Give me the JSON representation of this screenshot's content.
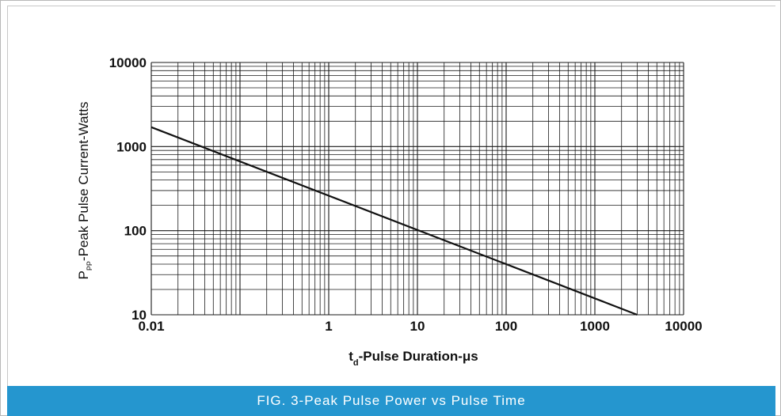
{
  "caption": "FIG. 3-Peak Pulse Power vs Pulse Time",
  "colors": {
    "caption_bar": "#2596cf",
    "line": "#111111",
    "grid": "#1a1a1a"
  },
  "chart_data": {
    "type": "line",
    "title": "",
    "xlabel_main": "t",
    "xlabel_sub": "d",
    "xlabel_rest": "-Pulse Duration-μs",
    "ylabel_main": "P",
    "ylabel_sub": "PP",
    "ylabel_rest": "-Peak Pulse Current-Watts",
    "xscale": "log",
    "yscale": "log",
    "xlim": [
      0.01,
      10000
    ],
    "ylim": [
      10,
      10000
    ],
    "x_ticks": [
      "0.01",
      "1",
      "10",
      "100",
      "1000",
      "10000"
    ],
    "y_ticks": [
      "10",
      "100",
      "1000",
      "10000"
    ],
    "grid": true,
    "series": [
      {
        "x": [
          0.01,
          0.1,
          1,
          10,
          100,
          1000,
          3000
        ],
        "y": [
          1700,
          560,
          540,
          175,
          57,
          18,
          10
        ]
      }
    ]
  }
}
